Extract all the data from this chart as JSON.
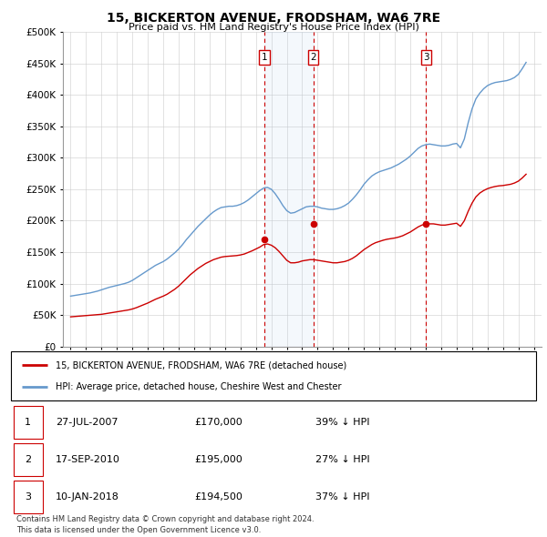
{
  "title": "15, BICKERTON AVENUE, FRODSHAM, WA6 7RE",
  "subtitle": "Price paid vs. HM Land Registry's House Price Index (HPI)",
  "legend_property": "15, BICKERTON AVENUE, FRODSHAM, WA6 7RE (detached house)",
  "legend_hpi": "HPI: Average price, detached house, Cheshire West and Chester",
  "footnote1": "Contains HM Land Registry data © Crown copyright and database right 2024.",
  "footnote2": "This data is licensed under the Open Government Licence v3.0.",
  "property_color": "#cc0000",
  "hpi_color": "#6699cc",
  "transactions": [
    {
      "id": 1,
      "date": "27-JUL-2007",
      "price": 170000,
      "year": 2007.57,
      "hpi_pct": "39% ↓ HPI"
    },
    {
      "id": 2,
      "date": "17-SEP-2010",
      "price": 195000,
      "year": 2010.71,
      "hpi_pct": "27% ↓ HPI"
    },
    {
      "id": 3,
      "date": "10-JAN-2018",
      "price": 194500,
      "year": 2018.03,
      "hpi_pct": "37% ↓ HPI"
    }
  ],
  "ylim": [
    0,
    500000
  ],
  "xlim": [
    1994.5,
    2025.5
  ],
  "yticks": [
    0,
    50000,
    100000,
    150000,
    200000,
    250000,
    300000,
    350000,
    400000,
    450000,
    500000
  ],
  "ytick_labels": [
    "£0",
    "£50K",
    "£100K",
    "£150K",
    "£200K",
    "£250K",
    "£300K",
    "£350K",
    "£400K",
    "£450K",
    "£500K"
  ],
  "hpi_data_x": [
    1995.0,
    1995.25,
    1995.5,
    1995.75,
    1996.0,
    1996.25,
    1996.5,
    1996.75,
    1997.0,
    1997.25,
    1997.5,
    1997.75,
    1998.0,
    1998.25,
    1998.5,
    1998.75,
    1999.0,
    1999.25,
    1999.5,
    1999.75,
    2000.0,
    2000.25,
    2000.5,
    2000.75,
    2001.0,
    2001.25,
    2001.5,
    2001.75,
    2002.0,
    2002.25,
    2002.5,
    2002.75,
    2003.0,
    2003.25,
    2003.5,
    2003.75,
    2004.0,
    2004.25,
    2004.5,
    2004.75,
    2005.0,
    2005.25,
    2005.5,
    2005.75,
    2006.0,
    2006.25,
    2006.5,
    2006.75,
    2007.0,
    2007.25,
    2007.5,
    2007.75,
    2008.0,
    2008.25,
    2008.5,
    2008.75,
    2009.0,
    2009.25,
    2009.5,
    2009.75,
    2010.0,
    2010.25,
    2010.5,
    2010.75,
    2011.0,
    2011.25,
    2011.5,
    2011.75,
    2012.0,
    2012.25,
    2012.5,
    2012.75,
    2013.0,
    2013.25,
    2013.5,
    2013.75,
    2014.0,
    2014.25,
    2014.5,
    2014.75,
    2015.0,
    2015.25,
    2015.5,
    2015.75,
    2016.0,
    2016.25,
    2016.5,
    2016.75,
    2017.0,
    2017.25,
    2017.5,
    2017.75,
    2018.0,
    2018.25,
    2018.5,
    2018.75,
    2019.0,
    2019.25,
    2019.5,
    2019.75,
    2020.0,
    2020.25,
    2020.5,
    2020.75,
    2021.0,
    2021.25,
    2021.5,
    2021.75,
    2022.0,
    2022.25,
    2022.5,
    2022.75,
    2023.0,
    2023.25,
    2023.5,
    2023.75,
    2024.0,
    2024.25,
    2024.5
  ],
  "hpi_data_y": [
    80000,
    81000,
    82000,
    83000,
    84000,
    85000,
    86500,
    88000,
    90000,
    92000,
    94000,
    95500,
    97000,
    98500,
    100000,
    102000,
    105000,
    109000,
    113000,
    117000,
    121000,
    125000,
    129000,
    132000,
    135000,
    139000,
    144000,
    149000,
    155000,
    162000,
    170000,
    177000,
    184000,
    191000,
    197000,
    203000,
    209000,
    214000,
    218000,
    221000,
    222000,
    223000,
    223000,
    224000,
    226000,
    229000,
    233000,
    238000,
    243000,
    248000,
    252000,
    253000,
    250000,
    243000,
    234000,
    224000,
    216000,
    212000,
    213000,
    216000,
    219000,
    222000,
    223000,
    223000,
    222000,
    220000,
    219000,
    218000,
    218000,
    219000,
    221000,
    224000,
    228000,
    234000,
    241000,
    249000,
    258000,
    265000,
    271000,
    275000,
    278000,
    280000,
    282000,
    284000,
    287000,
    290000,
    294000,
    298000,
    303000,
    309000,
    315000,
    319000,
    321000,
    322000,
    321000,
    320000,
    319000,
    319000,
    320000,
    322000,
    323000,
    316000,
    330000,
    356000,
    378000,
    394000,
    403000,
    410000,
    415000,
    418000,
    420000,
    421000,
    422000,
    423000,
    425000,
    428000,
    433000,
    442000,
    452000
  ],
  "property_data_x": [
    1995.0,
    1995.25,
    1995.5,
    1995.75,
    1996.0,
    1996.25,
    1996.5,
    1996.75,
    1997.0,
    1997.25,
    1997.5,
    1997.75,
    1998.0,
    1998.25,
    1998.5,
    1998.75,
    1999.0,
    1999.25,
    1999.5,
    1999.75,
    2000.0,
    2000.25,
    2000.5,
    2000.75,
    2001.0,
    2001.25,
    2001.5,
    2001.75,
    2002.0,
    2002.25,
    2002.5,
    2002.75,
    2003.0,
    2003.25,
    2003.5,
    2003.75,
    2004.0,
    2004.25,
    2004.5,
    2004.75,
    2005.0,
    2005.25,
    2005.5,
    2005.75,
    2006.0,
    2006.25,
    2006.5,
    2006.75,
    2007.0,
    2007.25,
    2007.5,
    2007.75,
    2008.0,
    2008.25,
    2008.5,
    2008.75,
    2009.0,
    2009.25,
    2009.5,
    2009.75,
    2010.0,
    2010.25,
    2010.5,
    2010.75,
    2011.0,
    2011.25,
    2011.5,
    2011.75,
    2012.0,
    2012.25,
    2012.5,
    2012.75,
    2013.0,
    2013.25,
    2013.5,
    2013.75,
    2014.0,
    2014.25,
    2014.5,
    2014.75,
    2015.0,
    2015.25,
    2015.5,
    2015.75,
    2016.0,
    2016.25,
    2016.5,
    2016.75,
    2017.0,
    2017.25,
    2017.5,
    2017.75,
    2018.0,
    2018.25,
    2018.5,
    2018.75,
    2019.0,
    2019.25,
    2019.5,
    2019.75,
    2020.0,
    2020.25,
    2020.5,
    2020.75,
    2021.0,
    2021.25,
    2021.5,
    2021.75,
    2022.0,
    2022.25,
    2022.5,
    2022.75,
    2023.0,
    2023.25,
    2023.5,
    2023.75,
    2024.0,
    2024.25,
    2024.5
  ],
  "property_data_y": [
    47000,
    47500,
    48000,
    48500,
    49000,
    49500,
    50000,
    50500,
    51000,
    52000,
    53000,
    54000,
    55000,
    56000,
    57000,
    58000,
    59500,
    61500,
    64000,
    66500,
    69000,
    72000,
    75000,
    77500,
    80000,
    83000,
    87000,
    91000,
    96000,
    102000,
    108000,
    114000,
    119000,
    124000,
    128000,
    132000,
    135000,
    138000,
    140000,
    142000,
    143000,
    143500,
    144000,
    144500,
    145500,
    147000,
    149500,
    152000,
    155000,
    158000,
    162000,
    163000,
    161000,
    157000,
    151000,
    144000,
    137000,
    133000,
    133000,
    134000,
    136000,
    137000,
    138000,
    138000,
    137000,
    136000,
    135000,
    134000,
    133000,
    133000,
    134000,
    135000,
    137000,
    140000,
    144000,
    149000,
    154000,
    158000,
    162000,
    165000,
    167000,
    169000,
    170500,
    171500,
    172500,
    174000,
    176000,
    179000,
    182000,
    186000,
    190000,
    193000,
    195000,
    195000,
    195000,
    194000,
    193000,
    193000,
    194000,
    195000,
    196000,
    191000,
    200000,
    215000,
    228000,
    238000,
    244000,
    248000,
    251000,
    253000,
    254500,
    255500,
    256000,
    257000,
    258000,
    260000,
    263000,
    268000,
    274000
  ]
}
